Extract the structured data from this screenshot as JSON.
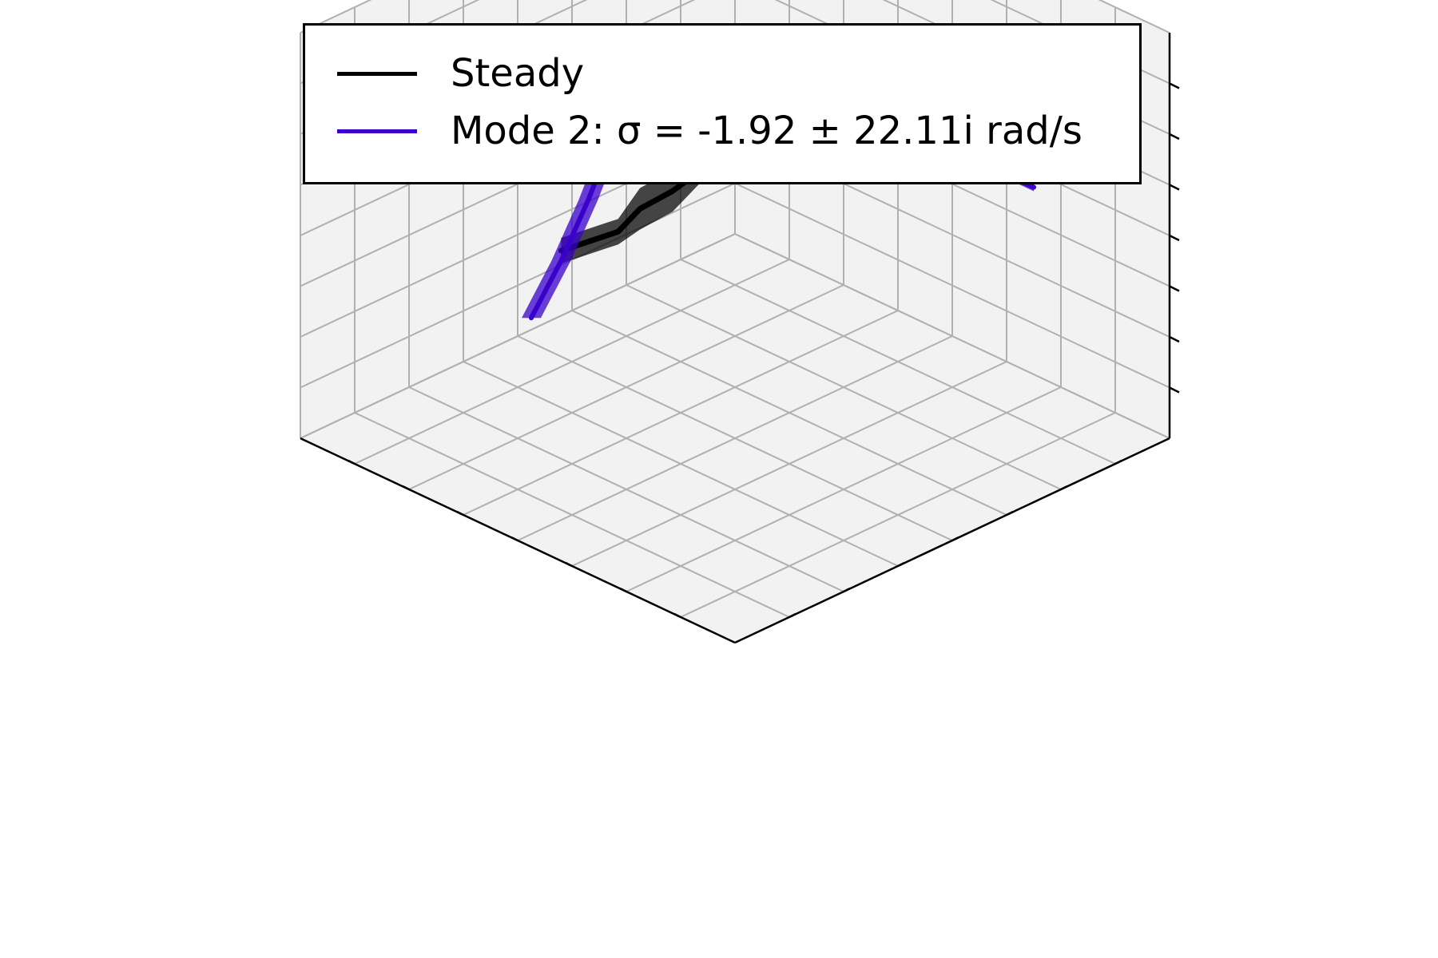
{
  "colors": {
    "pane": "#f2f2f2",
    "grid": "#b0b0b0",
    "axis": "#000000",
    "steady": "#000000",
    "mode": "#3a00cc"
  },
  "legend": {
    "placement": "top-center",
    "items": [
      {
        "label": "Steady",
        "color": "#000000"
      },
      {
        "label": "Mode 2: σ = -1.92 ± 22.11i rad/s",
        "color": "#3a00cc"
      }
    ]
  },
  "chart_data": {
    "type": "line",
    "projection": "3d",
    "grid": true,
    "tick_labels_shown": false,
    "xlim": [
      0,
      8
    ],
    "ylim": [
      0,
      8
    ],
    "zlim": [
      0,
      8
    ],
    "series": [
      {
        "name": "Steady",
        "color": "#000000",
        "points": [
          [
            1.6,
            7.1,
            5.0
          ],
          [
            2.5,
            6.2,
            5.0
          ],
          [
            3.8,
            4.9,
            5.0
          ],
          [
            4.6,
            4.0,
            5.0
          ],
          [
            4.75,
            3.6,
            4.7
          ],
          [
            4.95,
            3.2,
            4.45
          ],
          [
            5.1,
            2.95,
            4.05
          ],
          [
            5.6,
            2.4,
            3.7
          ]
        ]
      },
      {
        "name": "Mode 2: σ = -1.92 ± 22.11i rad/s",
        "color": "#3a00cc",
        "points": [
          [
            1.6,
            7.1,
            4.6
          ],
          [
            2.0,
            6.7,
            5.0
          ],
          [
            2.5,
            6.2,
            5.55
          ],
          [
            3.2,
            5.5,
            6.0
          ],
          [
            3.8,
            4.9,
            6.2
          ],
          [
            4.6,
            4.1,
            6.1
          ],
          [
            5.2,
            3.4,
            5.8
          ],
          [
            5.5,
            3.2,
            5.45
          ],
          [
            5.65,
            2.95,
            4.4
          ],
          [
            5.8,
            2.6,
            3.3
          ],
          [
            5.95,
            2.2,
            2.3
          ]
        ]
      }
    ]
  }
}
